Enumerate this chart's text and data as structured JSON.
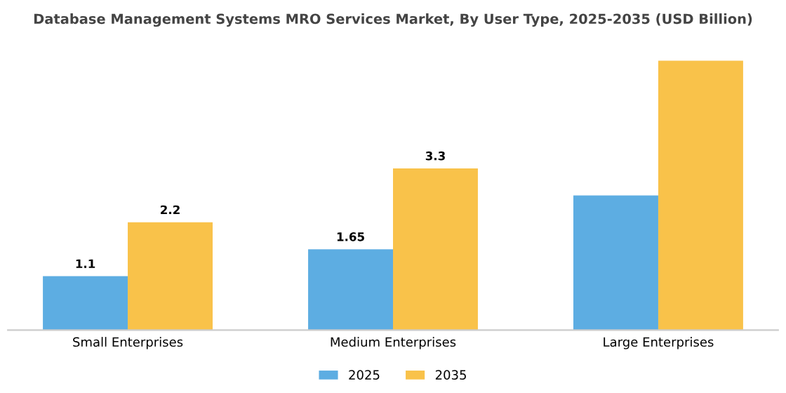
{
  "chart_data": {
    "type": "bar",
    "title": "Database Management Systems MRO Services Market, By User Type, 2025-2035 (USD Billion)",
    "categories": [
      "Small Enterprises",
      "Medium Enterprises",
      "Large Enterprises"
    ],
    "series": [
      {
        "name": "2025",
        "color": "#5dade2",
        "values": [
          1.1,
          1.65,
          2.75
        ],
        "value_labels": [
          "1.1",
          "1.65",
          null
        ]
      },
      {
        "name": "2035",
        "color": "#f9c24a",
        "values": [
          2.2,
          3.3,
          5.5
        ],
        "value_labels": [
          "2.2",
          "3.3",
          null
        ]
      }
    ],
    "legend": "bottom",
    "grid": false
  }
}
